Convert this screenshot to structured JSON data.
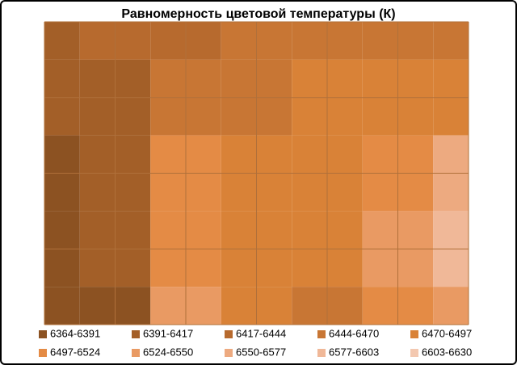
{
  "chart_data": {
    "type": "contour",
    "title": "Равномерность  цветовой температуры (К)",
    "z": [
      [
        6400,
        6420,
        6440,
        6450,
        6450,
        6455,
        6450
      ],
      [
        6395,
        6415,
        6450,
        6460,
        6480,
        6470,
        6480
      ],
      [
        6370,
        6410,
        6500,
        6490,
        6480,
        6520,
        6560
      ],
      [
        6370,
        6400,
        6520,
        6480,
        6470,
        6530,
        6600
      ],
      [
        6380,
        6390,
        6540,
        6470,
        6460,
        6500,
        6540
      ]
    ],
    "bands": [
      {
        "range": [
          6364,
          6391
        ],
        "label": "6364-6391",
        "color": "#8c5222"
      },
      {
        "range": [
          6391,
          6417
        ],
        "label": "6391-6417",
        "color": "#a35f28"
      },
      {
        "range": [
          6417,
          6444
        ],
        "label": "6417-6444",
        "color": "#b76a2e"
      },
      {
        "range": [
          6444,
          6470
        ],
        "label": "6444-6470",
        "color": "#c87634"
      },
      {
        "range": [
          6470,
          6497
        ],
        "label": "6470-6497",
        "color": "#d98237"
      },
      {
        "range": [
          6497,
          6524
        ],
        "label": "6497-6524",
        "color": "#e48b45"
      },
      {
        "range": [
          6524,
          6550
        ],
        "label": "6524-6550",
        "color": "#e99a63"
      },
      {
        "range": [
          6550,
          6577
        ],
        "label": "6550-6577",
        "color": "#edaa80"
      },
      {
        "range": [
          6577,
          6603
        ],
        "label": "6577-6603",
        "color": "#f0b898"
      },
      {
        "range": [
          6603,
          6630
        ],
        "label": "6603-6630",
        "color": "#f3c8b0"
      }
    ]
  }
}
